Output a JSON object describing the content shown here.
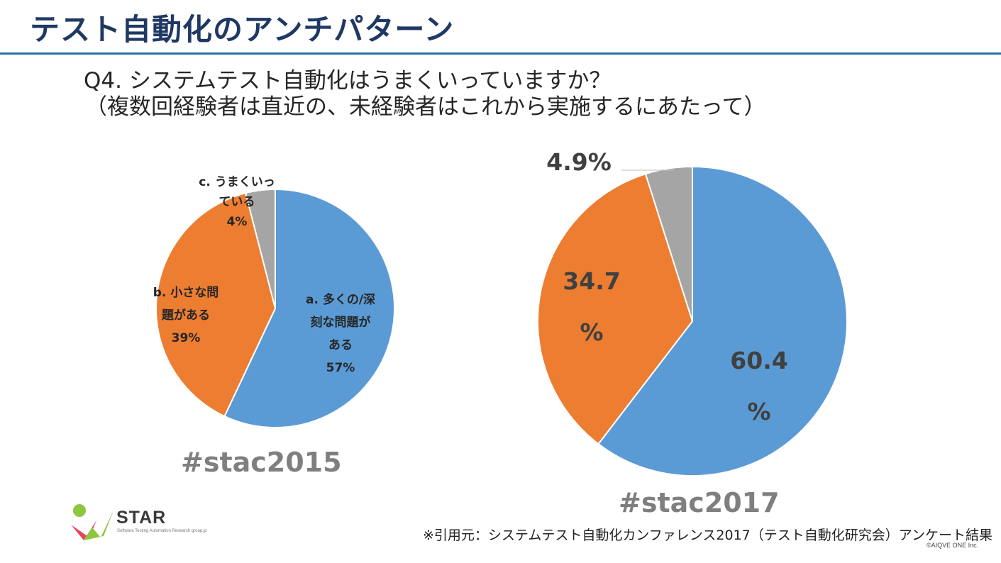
{
  "title": "テスト自動化のアンチパターン",
  "question": {
    "line1": "Q4. システムテスト自動化はうまくいっていますか？",
    "line2": "（複数回経験者は直近の、未経験者はこれから実施するにあたって）"
  },
  "colors": {
    "title": "#1f3864",
    "rule": "#2e6da4",
    "slice_a": "#5b9bd5",
    "slice_b": "#ed7d31",
    "slice_c": "#a5a5a5"
  },
  "chart_data": [
    {
      "type": "pie",
      "title": "#stac2015",
      "slices": [
        {
          "label_lines": [
            "a. 多くの/深",
            "刻な問題が",
            "ある"
          ],
          "value": 57,
          "value_text": "57%"
        },
        {
          "label_lines": [
            "b. 小さな問",
            "題がある"
          ],
          "value": 39,
          "value_text": "39%"
        },
        {
          "label_lines": [
            "c. うまくいっ",
            "ている"
          ],
          "value": 4,
          "value_text": "4%"
        }
      ]
    },
    {
      "type": "pie",
      "title": "#stac2017",
      "slices": [
        {
          "value": 60.4,
          "value_lines": [
            "60.4",
            "%"
          ]
        },
        {
          "value": 34.7,
          "value_lines": [
            "34.7",
            "%"
          ]
        },
        {
          "value": 4.9,
          "value_lines": [
            "4.9%"
          ]
        }
      ]
    }
  ],
  "logo": {
    "text": "STAR",
    "subtitle": "Software Testing Automation Research group.jp"
  },
  "source_note": "※引用元：システムテスト自動化カンファレンス2017（テスト自動化研究会）アンケート結果",
  "copyright": "©AIQVE ONE Inc."
}
